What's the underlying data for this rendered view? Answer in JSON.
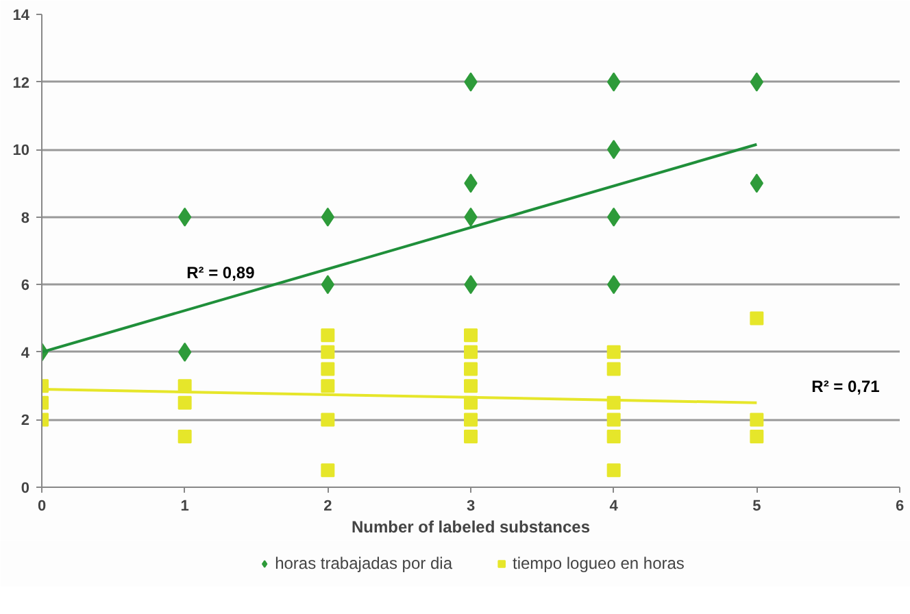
{
  "chart_data": {
    "type": "scatter",
    "xlabel": "Number of labeled substances",
    "xlim": [
      0,
      6
    ],
    "xticks": [
      0,
      1,
      2,
      3,
      4,
      5,
      6
    ],
    "ylim": [
      0,
      14
    ],
    "yticks": [
      0,
      2,
      4,
      6,
      8,
      10,
      12,
      14
    ],
    "grid": "y",
    "legend": "bottom",
    "series": [
      {
        "name": "horas trabajadas por dia",
        "color": "#2e9b3a",
        "marker": "diamond",
        "x": [
          0,
          1,
          1,
          2,
          2,
          3,
          3,
          3,
          3,
          4,
          4,
          4,
          4,
          5,
          5
        ],
        "values": [
          4,
          8,
          4,
          8,
          6,
          12,
          9,
          8,
          6,
          12,
          10,
          8,
          6,
          12,
          9
        ]
      },
      {
        "name": "tiempo logueo en horas",
        "color": "#e6e62a",
        "marker": "square",
        "x": [
          0,
          0,
          0,
          1,
          1,
          1,
          2,
          2,
          2,
          2,
          2,
          2,
          3,
          3,
          3,
          3,
          3,
          3,
          3,
          4,
          4,
          4,
          4,
          4,
          4,
          5,
          5,
          5
        ],
        "values": [
          3,
          2.5,
          2,
          3,
          2.5,
          1.5,
          4.5,
          4,
          3.5,
          3,
          2,
          0.5,
          4.5,
          4,
          3.5,
          3,
          2.5,
          2,
          1.5,
          4,
          3.5,
          2.5,
          2,
          1.5,
          0.5,
          5,
          2,
          1.5
        ]
      },
      {
        "type": "line",
        "color": "#1f8f3a",
        "x": [
          0,
          5
        ],
        "values": [
          4,
          10.15
        ]
      },
      {
        "type": "line",
        "color": "#e6e62a",
        "x": [
          0,
          5
        ],
        "values": [
          2.9,
          2.5
        ]
      }
    ],
    "annotations": [
      "R² = 0,89",
      "R² = 0,71"
    ]
  }
}
